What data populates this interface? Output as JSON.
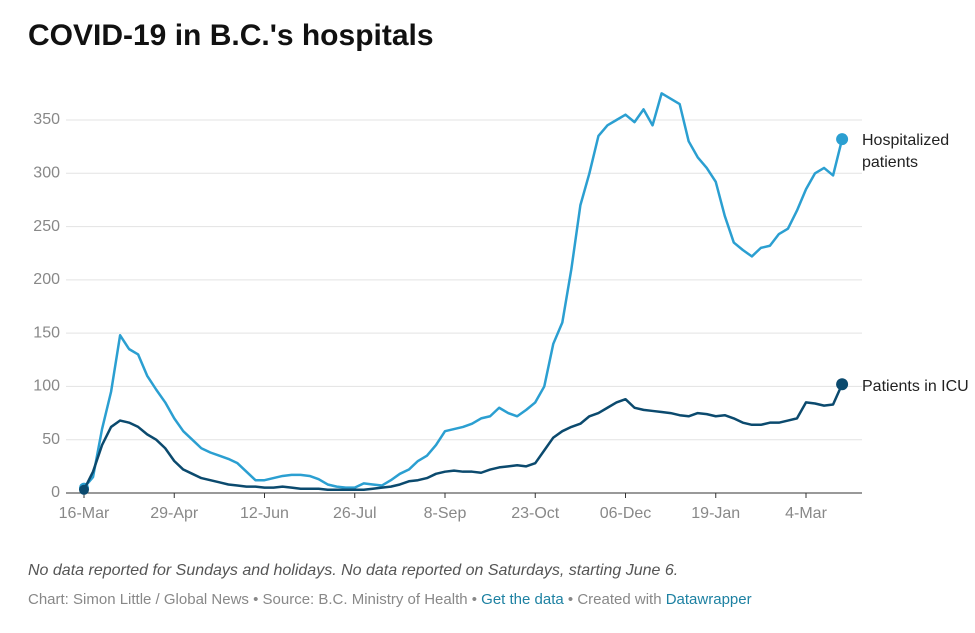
{
  "chart_data": {
    "type": "line",
    "title": "COVID-19 in B.C.'s hospitals",
    "categories": [
      "16-Mar",
      null,
      null,
      null,
      null,
      null,
      null,
      null,
      null,
      null,
      "29-Apr",
      null,
      null,
      null,
      null,
      null,
      null,
      null,
      null,
      null,
      "12-Jun",
      null,
      null,
      null,
      null,
      null,
      null,
      null,
      null,
      null,
      "26-Jul",
      null,
      null,
      null,
      null,
      null,
      null,
      null,
      null,
      null,
      "8-Sep",
      null,
      null,
      null,
      null,
      null,
      null,
      null,
      null,
      null,
      "23-Oct",
      null,
      null,
      null,
      null,
      null,
      null,
      null,
      null,
      null,
      "06-Dec",
      null,
      null,
      null,
      null,
      null,
      null,
      null,
      null,
      null,
      "19-Jan",
      null,
      null,
      null,
      null,
      null,
      null,
      null,
      null,
      null,
      "4-Mar",
      null,
      null,
      null,
      null
    ],
    "series": [
      {
        "name": "Hospitalized patients",
        "color": "#2b9fd1",
        "values": [
          5,
          15,
          60,
          95,
          148,
          135,
          130,
          110,
          97,
          85,
          70,
          58,
          50,
          42,
          38,
          35,
          32,
          28,
          20,
          12,
          12,
          14,
          16,
          17,
          17,
          16,
          13,
          8,
          6,
          5,
          5,
          9,
          8,
          7,
          12,
          18,
          22,
          30,
          35,
          45,
          58,
          60,
          62,
          65,
          70,
          72,
          80,
          75,
          72,
          78,
          85,
          100,
          140,
          160,
          210,
          270,
          300,
          335,
          345,
          350,
          355,
          348,
          360,
          345,
          375,
          370,
          365,
          330,
          315,
          305,
          292,
          260,
          235,
          228,
          222,
          230,
          232,
          243,
          248,
          265,
          285,
          300,
          305,
          298,
          332
        ]
      },
      {
        "name": "Patients in ICU",
        "color": "#0b4a6e",
        "values": [
          3,
          20,
          45,
          62,
          68,
          66,
          62,
          55,
          50,
          42,
          30,
          22,
          18,
          14,
          12,
          10,
          8,
          7,
          6,
          6,
          5,
          5,
          6,
          5,
          4,
          4,
          4,
          3,
          3,
          3,
          3,
          3,
          4,
          5,
          6,
          8,
          11,
          12,
          14,
          18,
          20,
          21,
          20,
          20,
          19,
          22,
          24,
          25,
          26,
          25,
          28,
          40,
          52,
          58,
          62,
          65,
          72,
          75,
          80,
          85,
          88,
          80,
          78,
          77,
          76,
          75,
          73,
          72,
          75,
          74,
          72,
          73,
          70,
          66,
          64,
          64,
          66,
          66,
          68,
          70,
          85,
          84,
          82,
          83,
          102
        ]
      }
    ],
    "ylim": [
      0,
      350
    ],
    "yticks": [
      0,
      50,
      100,
      150,
      200,
      250,
      300,
      350
    ],
    "grid": true,
    "note": "No data reported for Sundays and holidays. No data reported on Saturdays, starting June 6.",
    "source": {
      "credit": "Chart: Simon Little / Global News • Source: B.C. Ministry of Health •",
      "link": "Get the data",
      "created": "• Created with",
      "tool": "Datawrapper"
    }
  }
}
